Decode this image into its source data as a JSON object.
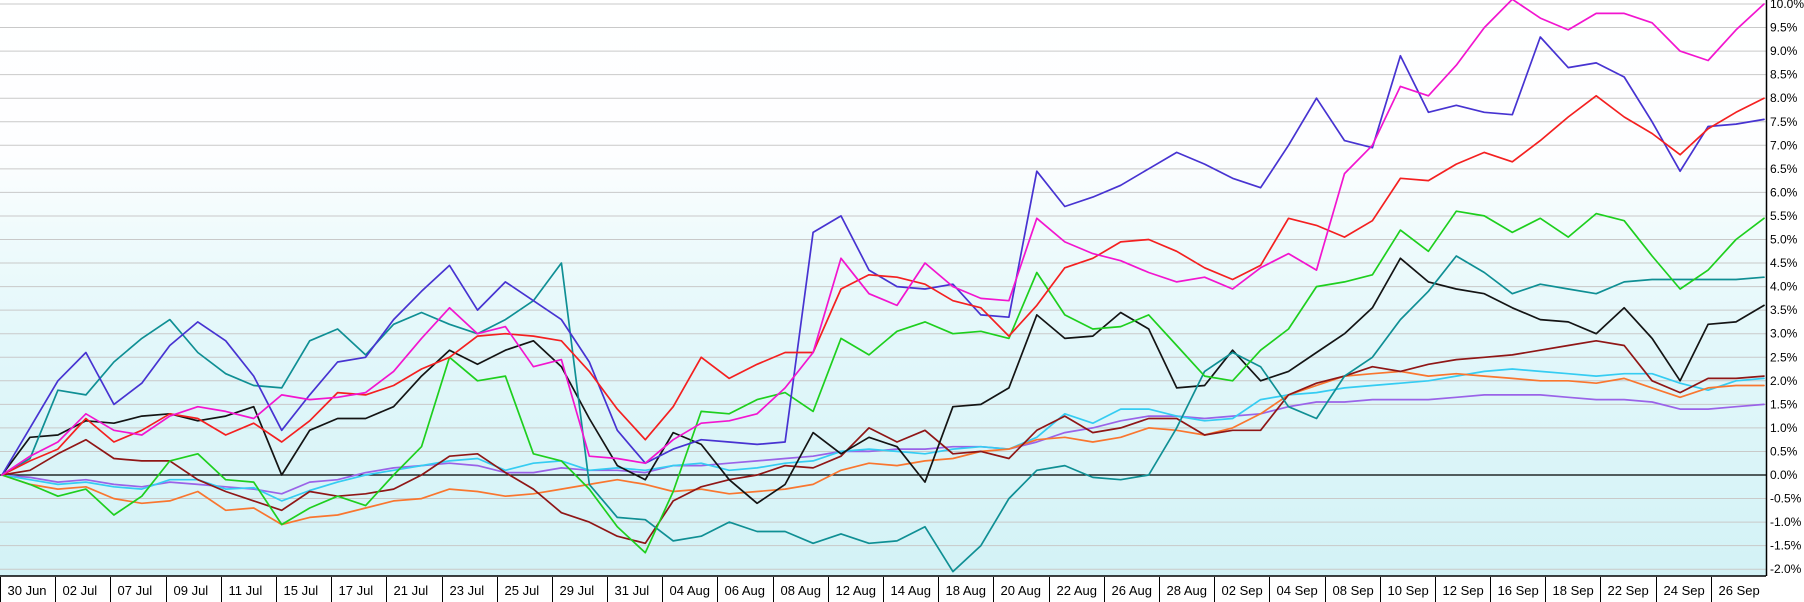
{
  "chart_data": {
    "type": "line",
    "title": "",
    "legend": "none",
    "grid": "horizontal",
    "y_axis": {
      "side": "right",
      "unit": "%",
      "min": -2.0,
      "max": 10.0,
      "step": 0.5,
      "tick_labels": [
        "10.0%",
        "9.5%",
        "9.0%",
        "8.5%",
        "8.0%",
        "7.5%",
        "7.0%",
        "6.5%",
        "6.0%",
        "5.5%",
        "5.0%",
        "4.5%",
        "4.0%",
        "3.5%",
        "3.0%",
        "2.5%",
        "2.0%",
        "1.5%",
        "1.0%",
        "0.5%",
        "0.0%",
        "-0.5%",
        "-1.0%",
        "-1.5%",
        "-2.0%"
      ],
      "zero_line_color": "#000000"
    },
    "x_axis": {
      "tick_labels": [
        "30 Jun",
        "02 Jul",
        "07 Jul",
        "09 Jul",
        "11 Jul",
        "15 Jul",
        "17 Jul",
        "21 Jul",
        "23 Jul",
        "25 Jul",
        "29 Jul",
        "31 Jul",
        "04 Aug",
        "06 Aug",
        "08 Aug",
        "12 Aug",
        "14 Aug",
        "18 Aug",
        "20 Aug",
        "22 Aug",
        "26 Aug",
        "28 Aug",
        "02 Sep",
        "04 Sep",
        "08 Sep",
        "10 Sep",
        "12 Sep",
        "16 Sep",
        "18 Sep",
        "22 Sep",
        "24 Sep",
        "26 Sep"
      ],
      "points_per_label": 2,
      "total_points": 64
    },
    "colors": {
      "gridline": "#c9c9c9",
      "axis": "#000000",
      "plot_bg_top": "#ffffff",
      "plot_bg_bottom": "#d3f2f6"
    },
    "series": [
      {
        "id": "purple",
        "color": "#9a63e8",
        "values": [
          0,
          -0.05,
          -0.15,
          -0.1,
          -0.2,
          -0.25,
          -0.15,
          -0.2,
          -0.25,
          -0.3,
          -0.4,
          -0.15,
          -0.1,
          0.05,
          0.15,
          0.2,
          0.25,
          0.2,
          0.05,
          0.05,
          0.15,
          0.1,
          0.1,
          0.05,
          0.2,
          0.2,
          0.25,
          0.3,
          0.35,
          0.4,
          0.5,
          0.5,
          0.55,
          0.55,
          0.6,
          0.6,
          0.55,
          0.7,
          0.9,
          1,
          1.15,
          1.25,
          1.25,
          1.2,
          1.25,
          1.3,
          1.45,
          1.55,
          1.55,
          1.6,
          1.6,
          1.6,
          1.65,
          1.7,
          1.7,
          1.7,
          1.65,
          1.6,
          1.6,
          1.55,
          1.4,
          1.4,
          1.45,
          1.5
        ]
      },
      {
        "id": "cyan",
        "color": "#35ccf2",
        "values": [
          0,
          -0.1,
          -0.2,
          -0.15,
          -0.25,
          -0.3,
          -0.1,
          -0.1,
          -0.3,
          -0.27,
          -0.55,
          -0.33,
          -0.15,
          0,
          0.1,
          0.2,
          0.3,
          0.35,
          0.1,
          0.25,
          0.3,
          0.1,
          0.15,
          0.1,
          0.2,
          0.25,
          0.1,
          0.15,
          0.25,
          0.3,
          0.5,
          0.55,
          0.5,
          0.45,
          0.55,
          0.6,
          0.55,
          0.8,
          1.3,
          1.1,
          1.4,
          1.4,
          1.25,
          1.15,
          1.2,
          1.6,
          1.7,
          1.75,
          1.85,
          1.9,
          1.95,
          2,
          2.1,
          2.2,
          2.25,
          2.2,
          2.15,
          2.1,
          2.15,
          2.15,
          1.95,
          1.8,
          2,
          2.05
        ]
      },
      {
        "id": "orange",
        "color": "#f9762f",
        "values": [
          0,
          -0.2,
          -0.3,
          -0.25,
          -0.5,
          -0.6,
          -0.55,
          -0.35,
          -0.75,
          -0.7,
          -1.05,
          -0.9,
          -0.85,
          -0.7,
          -0.55,
          -0.5,
          -0.3,
          -0.35,
          -0.45,
          -0.4,
          -0.3,
          -0.2,
          -0.1,
          -0.2,
          -0.35,
          -0.3,
          -0.4,
          -0.35,
          -0.3,
          -0.2,
          0.1,
          0.25,
          0.2,
          0.3,
          0.35,
          0.5,
          0.55,
          0.75,
          0.8,
          0.7,
          0.8,
          1,
          0.95,
          0.85,
          1,
          1.3,
          1.7,
          1.9,
          2.1,
          2.15,
          2.2,
          2.1,
          2.15,
          2.1,
          2.05,
          2,
          2,
          1.95,
          2.05,
          1.85,
          1.65,
          1.85,
          1.9,
          1.9
        ]
      },
      {
        "id": "dark-red",
        "color": "#8f1616",
        "values": [
          0,
          0.1,
          0.45,
          0.75,
          0.35,
          0.3,
          0.3,
          -0.1,
          -0.35,
          -0.55,
          -0.75,
          -0.35,
          -0.45,
          -0.4,
          -0.3,
          0,
          0.4,
          0.45,
          0.05,
          -0.3,
          -0.8,
          -1,
          -1.3,
          -1.45,
          -0.55,
          -0.25,
          -0.1,
          0,
          0.2,
          0.15,
          0.4,
          1,
          0.7,
          0.95,
          0.45,
          0.5,
          0.35,
          0.95,
          1.25,
          0.9,
          1,
          1.2,
          1.2,
          0.85,
          0.95,
          0.95,
          1.7,
          1.95,
          2.1,
          2.3,
          2.2,
          2.35,
          2.45,
          2.5,
          2.55,
          2.65,
          2.75,
          2.85,
          2.75,
          2,
          1.75,
          2.05,
          2.05,
          2.1
        ]
      },
      {
        "id": "black",
        "color": "#141414",
        "values": [
          0,
          0.8,
          0.85,
          1.15,
          1.1,
          1.25,
          1.3,
          1.15,
          1.25,
          1.45,
          0,
          0.95,
          1.2,
          1.2,
          1.45,
          2.1,
          2.65,
          2.35,
          2.65,
          2.85,
          2.3,
          1.2,
          0.2,
          -0.1,
          0.9,
          0.65,
          -0.1,
          -0.6,
          -0.2,
          0.9,
          0.45,
          0.8,
          0.6,
          -0.15,
          1.45,
          1.5,
          1.85,
          3.4,
          2.9,
          2.95,
          3.45,
          3.1,
          1.85,
          1.9,
          2.65,
          2,
          2.2,
          2.6,
          3,
          3.55,
          4.6,
          4.1,
          3.95,
          3.85,
          3.55,
          3.3,
          3.25,
          3,
          3.55,
          2.9,
          2,
          3.2,
          3.25,
          3.6
        ]
      },
      {
        "id": "teal",
        "color": "#0f8f94",
        "values": [
          0,
          0.35,
          1.8,
          1.7,
          2.4,
          2.9,
          3.3,
          2.6,
          2.15,
          1.9,
          1.85,
          2.85,
          3.1,
          2.55,
          3.2,
          3.45,
          3.2,
          3,
          3.3,
          3.7,
          4.5,
          -0.2,
          -0.9,
          -0.95,
          -1.4,
          -1.3,
          -1,
          -1.2,
          -1.2,
          -1.45,
          -1.25,
          -1.45,
          -1.4,
          -1.1,
          -2.05,
          -1.5,
          -0.5,
          0.1,
          0.2,
          -0.05,
          -0.1,
          0,
          1,
          2.2,
          2.6,
          2.3,
          1.45,
          1.2,
          2.1,
          2.5,
          3.3,
          3.9,
          4.65,
          4.3,
          3.85,
          4.05,
          3.95,
          3.85,
          4.1,
          4.15,
          4.15,
          4.15,
          4.15,
          4.2
        ]
      },
      {
        "id": "green",
        "color": "#1ecf1e",
        "values": [
          0,
          -0.2,
          -0.45,
          -0.3,
          -0.85,
          -0.45,
          0.3,
          0.45,
          -0.1,
          -0.15,
          -1.05,
          -0.7,
          -0.45,
          -0.65,
          0,
          0.6,
          2.5,
          2,
          2.1,
          0.45,
          0.3,
          -0.3,
          -1.1,
          -1.65,
          -0.35,
          1.35,
          1.3,
          1.6,
          1.75,
          1.35,
          2.9,
          2.55,
          3.05,
          3.25,
          3,
          3.05,
          2.9,
          4.3,
          3.4,
          3.1,
          3.15,
          3.4,
          2.75,
          2.1,
          2,
          2.65,
          3.1,
          4,
          4.1,
          4.25,
          5.2,
          4.75,
          5.6,
          5.5,
          5.15,
          5.45,
          5.05,
          5.55,
          5.4,
          4.65,
          3.95,
          4.35,
          5,
          5.45
        ]
      },
      {
        "id": "blue-violet",
        "color": "#4733d1",
        "values": [
          0,
          1,
          2,
          2.6,
          1.5,
          1.95,
          2.75,
          3.25,
          2.85,
          2.1,
          0.95,
          1.7,
          2.4,
          2.5,
          3.3,
          3.9,
          4.45,
          3.5,
          4.1,
          3.7,
          3.3,
          2.4,
          0.95,
          0.25,
          0.55,
          0.75,
          0.7,
          0.65,
          0.7,
          5.15,
          5.5,
          4.35,
          4,
          3.95,
          4.05,
          3.4,
          3.35,
          6.45,
          5.7,
          5.9,
          6.15,
          6.5,
          6.85,
          6.6,
          6.3,
          6.1,
          7,
          8,
          7.1,
          6.95,
          8.9,
          7.7,
          7.85,
          7.7,
          7.65,
          9.3,
          8.65,
          8.75,
          8.45,
          7.5,
          6.45,
          7.4,
          7.45,
          7.55
        ]
      },
      {
        "id": "red",
        "color": "#f42020",
        "values": [
          0,
          0.3,
          0.55,
          1.2,
          0.7,
          0.95,
          1.3,
          1.2,
          0.85,
          1.1,
          0.7,
          1.15,
          1.75,
          1.7,
          1.9,
          2.25,
          2.5,
          2.95,
          3,
          2.95,
          2.85,
          2.2,
          1.4,
          0.75,
          1.45,
          2.5,
          2.05,
          2.35,
          2.6,
          2.6,
          3.95,
          4.25,
          4.2,
          4.05,
          3.7,
          3.55,
          2.95,
          3.6,
          4.4,
          4.6,
          4.95,
          5,
          4.75,
          4.4,
          4.15,
          4.45,
          5.45,
          5.3,
          5.05,
          5.4,
          6.3,
          6.25,
          6.6,
          6.85,
          6.65,
          7.1,
          7.6,
          8.05,
          7.6,
          7.25,
          6.8,
          7.35,
          7.7,
          8
        ]
      },
      {
        "id": "magenta",
        "color": "#f215cf",
        "values": [
          0,
          0.4,
          0.7,
          1.3,
          0.95,
          0.85,
          1.25,
          1.45,
          1.35,
          1.2,
          1.7,
          1.6,
          1.65,
          1.75,
          2.2,
          2.9,
          3.55,
          3,
          3.15,
          2.3,
          2.45,
          0.4,
          0.35,
          0.25,
          0.75,
          1.1,
          1.15,
          1.3,
          1.85,
          2.6,
          4.6,
          3.85,
          3.6,
          4.5,
          4,
          3.75,
          3.7,
          5.45,
          4.95,
          4.7,
          4.55,
          4.3,
          4.1,
          4.2,
          3.95,
          4.4,
          4.7,
          4.35,
          6.4,
          7,
          8.25,
          8.05,
          8.7,
          9.5,
          10.1,
          9.7,
          9.45,
          9.8,
          9.8,
          9.6,
          9,
          8.8,
          9.45,
          10
        ]
      }
    ]
  }
}
